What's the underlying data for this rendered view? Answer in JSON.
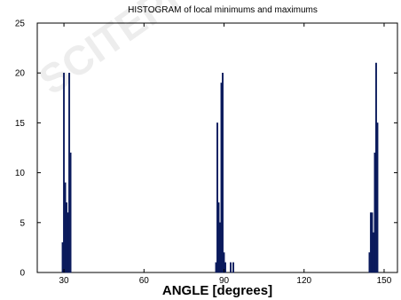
{
  "chart_data": {
    "type": "bar",
    "title": "HISTOGRAM of local minimums and maximums",
    "xlabel": "ANGLE [degrees]",
    "ylabel": "",
    "xlim": [
      20,
      155
    ],
    "ylim": [
      0,
      25
    ],
    "xticks": [
      30,
      60,
      90,
      120,
      150
    ],
    "yticks": [
      0,
      5,
      10,
      15,
      20,
      25
    ],
    "grid": false,
    "legend": "none",
    "bar_color": "#0a1a5c",
    "bin_width_deg": 0.5,
    "series": [
      {
        "x": [
          29.5,
          30.0,
          30.5,
          31.0,
          31.5,
          32.0,
          32.5,
          33.0,
          87.0,
          87.5,
          88.0,
          88.5,
          89.0,
          89.5,
          90.0,
          90.5,
          91.0,
          92.5,
          93.5,
          144.5,
          145.0,
          145.5,
          146.0,
          146.5,
          147.0,
          147.5,
          148.0
        ],
        "values": [
          3,
          20,
          9,
          7,
          6,
          20,
          12,
          0,
          1,
          15,
          7,
          5,
          19,
          20,
          2,
          1,
          0,
          1,
          1,
          2,
          6,
          6,
          4,
          12,
          21,
          15,
          0
        ]
      }
    ]
  },
  "colors": {
    "bars": "#0a1a5c",
    "axes": "#000000",
    "background": "#ffffff"
  }
}
